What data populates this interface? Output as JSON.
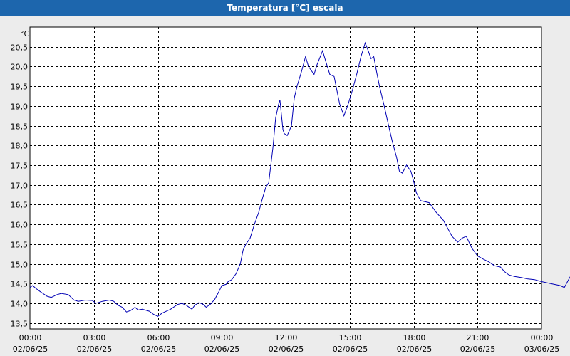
{
  "window": {
    "title": "Temperatura [°C] escala"
  },
  "chart_data": {
    "type": "line",
    "title": "Temperatura [°C] escala",
    "ylabel": "°C",
    "xlabel": "",
    "ylim": [
      13.35,
      21.0
    ],
    "xlim_hours": [
      0,
      24
    ],
    "y_ticks": [
      "13,5",
      "14,0",
      "14,5",
      "15,0",
      "15,5",
      "16,0",
      "16,5",
      "17,0",
      "17,5",
      "18,0",
      "18,5",
      "19,0",
      "19,5",
      "20,0",
      "20,5"
    ],
    "y_tick_values": [
      13.5,
      14.0,
      14.5,
      15.0,
      15.5,
      16.0,
      16.5,
      17.0,
      17.5,
      18.0,
      18.5,
      19.0,
      19.5,
      20.0,
      20.5
    ],
    "x_ticks": [
      {
        "time": "00:00",
        "date": "02/06/25"
      },
      {
        "time": "03:00",
        "date": "02/06/25"
      },
      {
        "time": "06:00",
        "date": "02/06/25"
      },
      {
        "time": "09:00",
        "date": "02/06/25"
      },
      {
        "time": "12:00",
        "date": "02/06/25"
      },
      {
        "time": "15:00",
        "date": "02/06/25"
      },
      {
        "time": "18:00",
        "date": "02/06/25"
      },
      {
        "time": "21:00",
        "date": "02/06/25"
      },
      {
        "time": "00:00",
        "date": "03/06/25"
      }
    ],
    "grid": true,
    "series": [
      {
        "color": "#0000b4",
        "points": [
          [
            0.0,
            14.4
          ],
          [
            0.13,
            14.45
          ],
          [
            0.27,
            14.38
          ],
          [
            0.47,
            14.3
          ],
          [
            0.8,
            14.18
          ],
          [
            1.0,
            14.15
          ],
          [
            1.27,
            14.22
          ],
          [
            1.47,
            14.25
          ],
          [
            1.8,
            14.22
          ],
          [
            2.07,
            14.08
          ],
          [
            2.27,
            14.05
          ],
          [
            2.6,
            14.08
          ],
          [
            2.93,
            14.07
          ],
          [
            3.1,
            14.0
          ],
          [
            3.4,
            14.05
          ],
          [
            3.73,
            14.08
          ],
          [
            3.93,
            14.05
          ],
          [
            4.13,
            13.95
          ],
          [
            4.33,
            13.9
          ],
          [
            4.53,
            13.78
          ],
          [
            4.73,
            13.82
          ],
          [
            4.93,
            13.9
          ],
          [
            5.07,
            13.83
          ],
          [
            5.27,
            13.85
          ],
          [
            5.6,
            13.8
          ],
          [
            5.8,
            13.72
          ],
          [
            6.0,
            13.67
          ],
          [
            6.2,
            13.75
          ],
          [
            6.6,
            13.85
          ],
          [
            6.93,
            13.97
          ],
          [
            7.13,
            14.0
          ],
          [
            7.33,
            13.95
          ],
          [
            7.6,
            13.85
          ],
          [
            7.73,
            13.95
          ],
          [
            7.93,
            14.02
          ],
          [
            8.13,
            13.97
          ],
          [
            8.27,
            13.9
          ],
          [
            8.47,
            13.98
          ],
          [
            8.67,
            14.1
          ],
          [
            8.87,
            14.3
          ],
          [
            9.0,
            14.45
          ],
          [
            9.2,
            14.48
          ],
          [
            9.3,
            14.55
          ],
          [
            9.47,
            14.6
          ],
          [
            9.67,
            14.75
          ],
          [
            9.87,
            15.0
          ],
          [
            10.0,
            15.35
          ],
          [
            10.13,
            15.5
          ],
          [
            10.33,
            15.65
          ],
          [
            10.53,
            16.0
          ],
          [
            10.73,
            16.3
          ],
          [
            10.93,
            16.7
          ],
          [
            11.07,
            16.95
          ],
          [
            11.2,
            17.05
          ],
          [
            11.4,
            17.95
          ],
          [
            11.53,
            18.7
          ],
          [
            11.67,
            19.05
          ],
          [
            11.73,
            19.15
          ],
          [
            11.87,
            18.4
          ],
          [
            11.93,
            18.3
          ],
          [
            12.07,
            18.25
          ],
          [
            12.27,
            18.5
          ],
          [
            12.4,
            19.2
          ],
          [
            12.53,
            19.5
          ],
          [
            12.73,
            19.85
          ],
          [
            12.93,
            20.25
          ],
          [
            13.07,
            20.0
          ],
          [
            13.2,
            19.9
          ],
          [
            13.33,
            19.8
          ],
          [
            13.47,
            20.05
          ],
          [
            13.73,
            20.4
          ],
          [
            13.87,
            20.15
          ],
          [
            14.07,
            19.8
          ],
          [
            14.27,
            19.75
          ],
          [
            14.53,
            19.05
          ],
          [
            14.73,
            18.75
          ],
          [
            14.93,
            19.05
          ],
          [
            15.13,
            19.4
          ],
          [
            15.33,
            19.8
          ],
          [
            15.53,
            20.25
          ],
          [
            15.73,
            20.6
          ],
          [
            15.87,
            20.4
          ],
          [
            16.0,
            20.2
          ],
          [
            16.13,
            20.25
          ],
          [
            16.27,
            19.85
          ],
          [
            16.4,
            19.5
          ],
          [
            16.6,
            19.05
          ],
          [
            16.87,
            18.4
          ],
          [
            17.0,
            18.1
          ],
          [
            17.2,
            17.7
          ],
          [
            17.33,
            17.35
          ],
          [
            17.47,
            17.3
          ],
          [
            17.67,
            17.5
          ],
          [
            17.87,
            17.35
          ],
          [
            18.0,
            17.1
          ],
          [
            18.13,
            16.8
          ],
          [
            18.33,
            16.6
          ],
          [
            18.73,
            16.55
          ],
          [
            19.07,
            16.3
          ],
          [
            19.4,
            16.1
          ],
          [
            19.6,
            15.9
          ],
          [
            19.8,
            15.7
          ],
          [
            20.07,
            15.55
          ],
          [
            20.27,
            15.65
          ],
          [
            20.47,
            15.7
          ],
          [
            20.73,
            15.4
          ],
          [
            21.0,
            15.2
          ],
          [
            21.27,
            15.12
          ],
          [
            21.53,
            15.05
          ],
          [
            21.8,
            14.95
          ],
          [
            22.07,
            14.92
          ],
          [
            22.27,
            14.8
          ],
          [
            22.47,
            14.72
          ],
          [
            22.73,
            14.68
          ],
          [
            23.07,
            14.65
          ],
          [
            23.33,
            14.62
          ],
          [
            23.67,
            14.6
          ],
          [
            24.0,
            14.55
          ],
          [
            24.27,
            14.52
          ],
          [
            24.6,
            14.48
          ],
          [
            24.87,
            14.45
          ],
          [
            25.07,
            14.4
          ],
          [
            25.27,
            14.6
          ],
          [
            25.53,
            14.85
          ],
          [
            25.8,
            14.98
          ],
          [
            26.07,
            15.02
          ],
          [
            26.2,
            14.98
          ],
          [
            26.27,
            14.9
          ],
          [
            26.4,
            14.8
          ]
        ]
      }
    ]
  }
}
